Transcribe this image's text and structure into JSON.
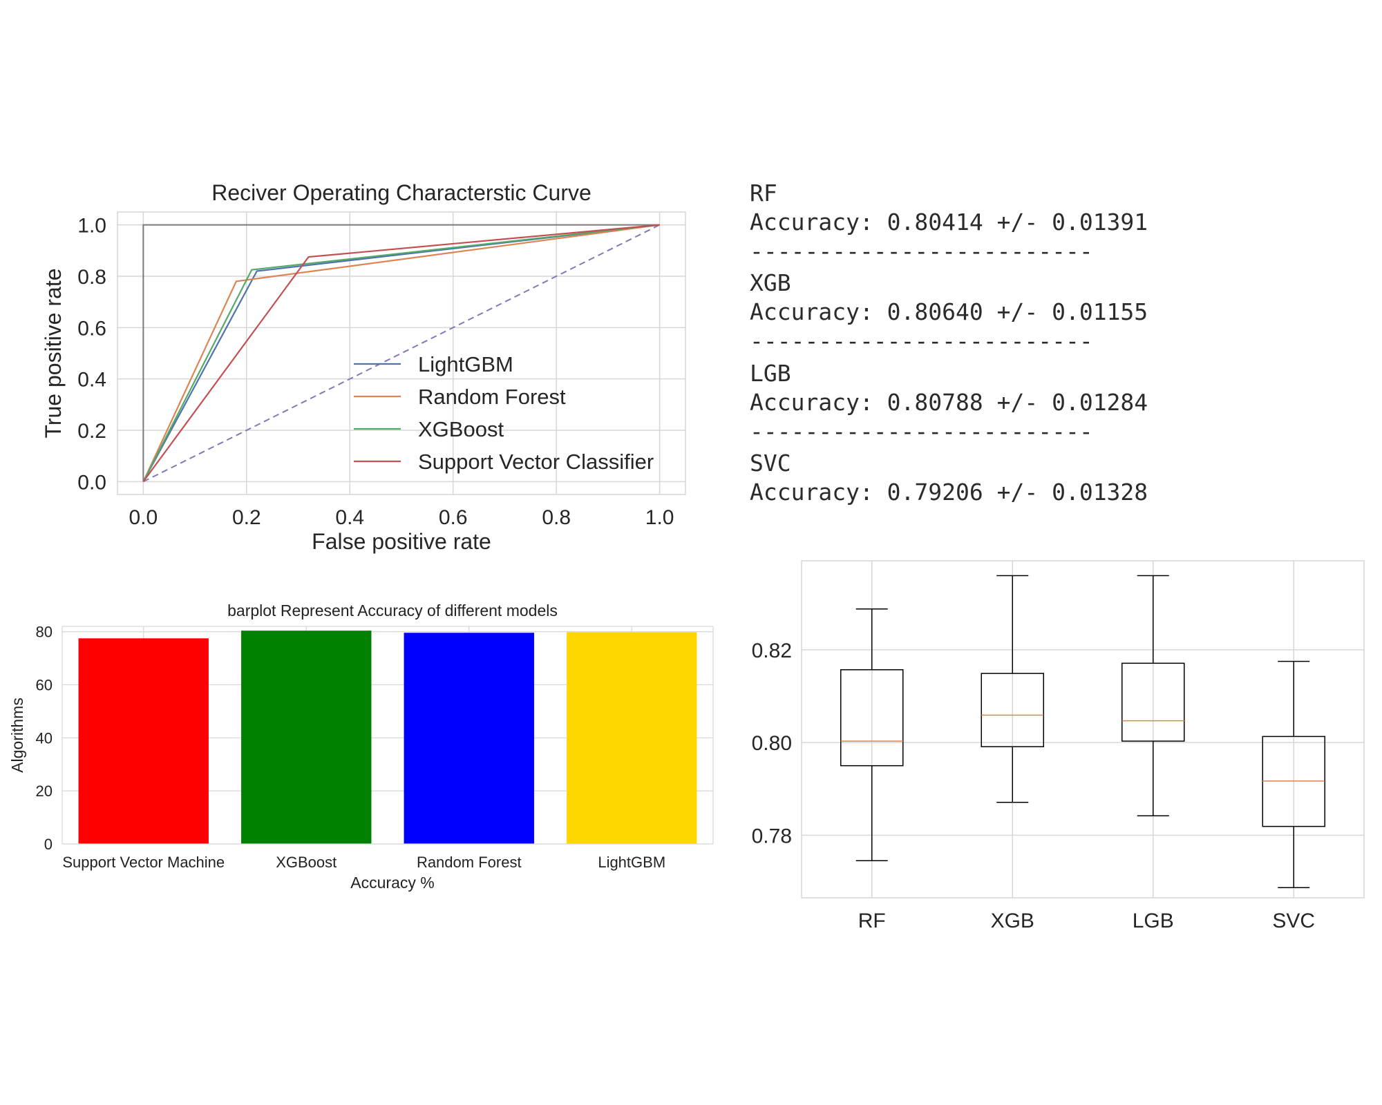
{
  "chart_data": [
    {
      "type": "line",
      "title": "Reciver Operating Characterstic Curve",
      "xlabel": "False positive rate",
      "ylabel": "True positive rate",
      "xlim": [
        -0.05,
        1.05
      ],
      "ylim": [
        -0.05,
        1.05
      ],
      "x_ticks": [
        "0.0",
        "0.2",
        "0.4",
        "0.6",
        "0.8",
        "1.0"
      ],
      "y_ticks": [
        "0.0",
        "0.2",
        "0.4",
        "0.6",
        "0.8",
        "1.0"
      ],
      "grid": true,
      "legend_position": "lower-right",
      "series": [
        {
          "name": "LightGBM",
          "color": "#4c72b0",
          "points": [
            [
              0,
              0
            ],
            [
              0.22,
              0.82
            ],
            [
              1,
              1
            ]
          ]
        },
        {
          "name": "Random Forest",
          "color": "#dd8452",
          "points": [
            [
              0,
              0
            ],
            [
              0.18,
              0.78
            ],
            [
              1,
              1
            ]
          ]
        },
        {
          "name": "XGBoost",
          "color": "#55a868",
          "points": [
            [
              0,
              0
            ],
            [
              0.21,
              0.825
            ],
            [
              1,
              1
            ]
          ]
        },
        {
          "name": "Support Vector Classifier",
          "color": "#c44e52",
          "points": [
            [
              0,
              0
            ],
            [
              0.32,
              0.875
            ],
            [
              1,
              1
            ]
          ]
        }
      ],
      "reference_lines": [
        {
          "style": "dashed",
          "color": "#7b7bb5",
          "points": [
            [
              0,
              0
            ],
            [
              1,
              1
            ]
          ]
        },
        {
          "style": "solid",
          "color": "#7a7a7a",
          "points": [
            [
              0,
              0
            ],
            [
              0,
              1
            ],
            [
              1,
              1
            ]
          ]
        }
      ]
    },
    {
      "type": "bar",
      "title": "barplot Represent Accuracy of different models",
      "xlabel": "Accuracy %",
      "ylabel": "Algorithms",
      "categories": [
        "Support Vector Machine",
        "XGBoost",
        "Random Forest",
        "LightGBM"
      ],
      "values": [
        77.5,
        80.4,
        79.6,
        79.8
      ],
      "colors": [
        "#ff0000",
        "#008000",
        "#0000ff",
        "#ffd700"
      ],
      "y_ticks": [
        "0",
        "20",
        "40",
        "60",
        "80"
      ],
      "ylim": [
        0,
        82
      ],
      "grid": true
    },
    {
      "type": "box",
      "categories": [
        "RF",
        "XGB",
        "LGB",
        "SVC"
      ],
      "y_ticks": [
        "0.78",
        "0.80",
        "0.82"
      ],
      "ylim": [
        0.7665,
        0.8392
      ],
      "grid": true,
      "boxes": [
        {
          "name": "RF",
          "whisker_low": 0.7745,
          "q1": 0.795,
          "median": 0.8003,
          "q3": 0.8157,
          "whisker_high": 0.8288
        },
        {
          "name": "XGB",
          "whisker_low": 0.7871,
          "q1": 0.7991,
          "median": 0.8059,
          "q3": 0.8149,
          "whisker_high": 0.836
        },
        {
          "name": "LGB",
          "whisker_low": 0.7842,
          "q1": 0.8003,
          "median": 0.8047,
          "q3": 0.8171,
          "whisker_high": 0.836
        },
        {
          "name": "SVC",
          "whisker_low": 0.7687,
          "q1": 0.7819,
          "median": 0.7917,
          "q3": 0.8013,
          "whisker_high": 0.8175
        }
      ]
    }
  ],
  "results": {
    "entries": [
      {
        "model": "RF",
        "accuracy": "Accuracy: 0.80414 +/- 0.01391"
      },
      {
        "model": "XGB",
        "accuracy": "Accuracy: 0.80640 +/- 0.01155"
      },
      {
        "model": "LGB",
        "accuracy": "Accuracy: 0.80788 +/- 0.01284"
      },
      {
        "model": "SVC",
        "accuracy": "Accuracy: 0.79206 +/- 0.01328"
      }
    ],
    "separator": "-------------------------"
  }
}
